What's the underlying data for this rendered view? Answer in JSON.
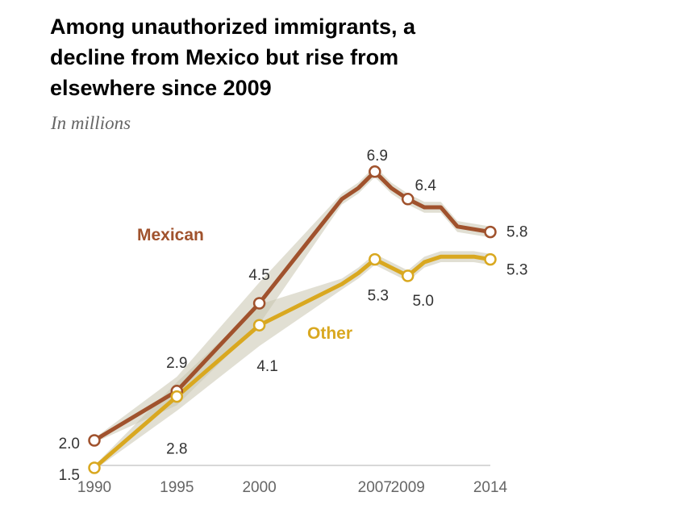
{
  "title_lines": [
    "Among unauthorized immigrants, a",
    "decline from Mexico but rise from",
    "elsewhere since 2009"
  ],
  "subtitle": "In millions",
  "chart_data": {
    "type": "line",
    "title": "Among unauthorized immigrants, a decline from Mexico but rise from elsewhere since 2009",
    "ylabel": "In millions",
    "xlabel": "",
    "x_ticks": [
      "1990",
      "1995",
      "2000",
      "2007",
      "2009",
      "2014"
    ],
    "xlim": [
      1990,
      2014
    ],
    "ylim": [
      0,
      7.5
    ],
    "series": [
      {
        "name": "Mexican",
        "color": "#A0522D",
        "x": [
          1990,
          1995,
          2000,
          2005,
          2006,
          2007,
          2008,
          2009,
          2010,
          2011,
          2012,
          2013,
          2014
        ],
        "values": [
          2.0,
          2.9,
          4.5,
          6.4,
          6.6,
          6.9,
          6.6,
          6.4,
          6.25,
          6.25,
          5.9,
          5.85,
          5.8
        ],
        "labeled": [
          {
            "x": 1990,
            "value": 2.0,
            "label": "2.0"
          },
          {
            "x": 1995,
            "value": 2.9,
            "label": "2.9"
          },
          {
            "x": 2000,
            "value": 4.5,
            "label": "4.5"
          },
          {
            "x": 2007,
            "value": 6.9,
            "label": "6.9"
          },
          {
            "x": 2009,
            "value": 6.4,
            "label": "6.4"
          },
          {
            "x": 2014,
            "value": 5.8,
            "label": "5.8"
          }
        ]
      },
      {
        "name": "Other",
        "color": "#D9A820",
        "x": [
          1990,
          1995,
          2000,
          2005,
          2006,
          2007,
          2008,
          2009,
          2010,
          2011,
          2012,
          2013,
          2014
        ],
        "values": [
          1.5,
          2.8,
          4.1,
          4.85,
          5.05,
          5.3,
          5.15,
          5.0,
          5.25,
          5.35,
          5.35,
          5.35,
          5.3
        ],
        "labeled": [
          {
            "x": 1990,
            "value": 1.5,
            "label": "1.5"
          },
          {
            "x": 1995,
            "value": 2.8,
            "label": "2.8"
          },
          {
            "x": 2000,
            "value": 4.1,
            "label": "4.1"
          },
          {
            "x": 2007,
            "value": 5.3,
            "label": "5.3"
          },
          {
            "x": 2009,
            "value": 5.0,
            "label": "5.0"
          },
          {
            "x": 2014,
            "value": 5.3,
            "label": "5.3"
          }
        ]
      }
    ],
    "band_color": "#C9C4AE"
  }
}
